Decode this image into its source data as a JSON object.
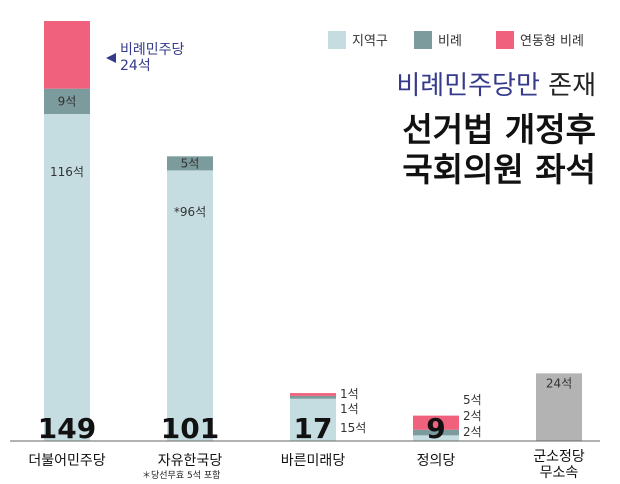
{
  "legend": [
    {
      "label": "지역구",
      "color": "#c5dde1"
    },
    {
      "label": "비례",
      "color": "#7b9b9c"
    },
    {
      "label": "연동형 비례",
      "color": "#f0617e"
    }
  ],
  "headline": {
    "accent": "비례민주당만",
    "rest": "존재",
    "line2": "선거법 개정후",
    "line3": "국회의원 좌석"
  },
  "annotation": {
    "line1": "비례민주당",
    "line2": "24석",
    "color": "#353a8c"
  },
  "footnote": "＊당선무효 5석 포함",
  "chart_data": {
    "type": "bar",
    "stacked": true,
    "categories": [
      "더불어민주당",
      "자유한국당",
      "바른미래당",
      "정의당",
      "군소정당 무소속"
    ],
    "series": [
      {
        "name": "지역구",
        "color": "#c5dde1",
        "values": [
          116,
          96,
          15,
          2,
          0
        ],
        "labels": [
          "116석",
          "*96석",
          "15석",
          "2석",
          ""
        ]
      },
      {
        "name": "비례",
        "color": "#7b9b9c",
        "values": [
          9,
          5,
          1,
          2,
          0
        ],
        "labels": [
          "9석",
          "5석",
          "1석",
          "2석",
          ""
        ]
      },
      {
        "name": "연동형 비례",
        "color": "#f0617e",
        "values": [
          24,
          0,
          1,
          5,
          0
        ],
        "labels": [
          "",
          "",
          "1석",
          "5석",
          ""
        ]
      }
    ],
    "other": {
      "values": [
        0,
        0,
        0,
        0,
        24
      ],
      "color": "#b3b3b3",
      "labels": [
        "",
        "",
        "",
        "",
        "24석"
      ]
    },
    "totals": [
      "149",
      "101",
      "17",
      "9",
      ""
    ],
    "ylim": [
      0,
      160
    ]
  }
}
